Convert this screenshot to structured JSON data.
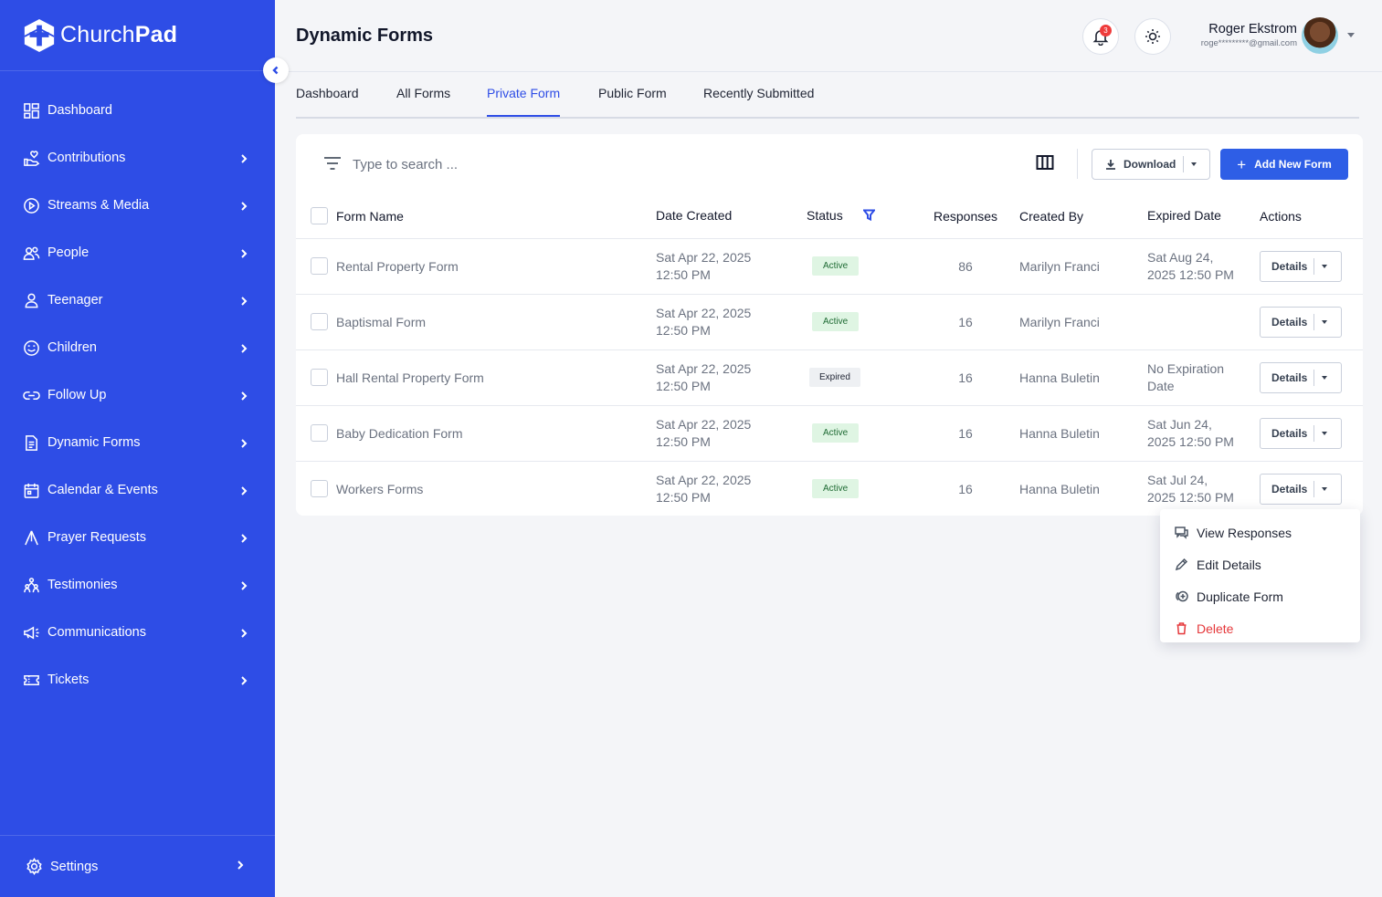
{
  "brand": {
    "name_part1": "Church",
    "name_part2": "Pad"
  },
  "sidebar": {
    "items": [
      {
        "label": "Dashboard",
        "icon": "dashboard-icon",
        "has_chevron": false
      },
      {
        "label": "Contributions",
        "icon": "hand-heart-icon",
        "has_chevron": true
      },
      {
        "label": "Streams & Media",
        "icon": "play-circle-icon",
        "has_chevron": true
      },
      {
        "label": "People",
        "icon": "people-icon",
        "has_chevron": true
      },
      {
        "label": "Teenager",
        "icon": "person-icon",
        "has_chevron": true
      },
      {
        "label": "Children",
        "icon": "smile-icon",
        "has_chevron": true
      },
      {
        "label": "Follow Up",
        "icon": "link-icon",
        "has_chevron": true
      },
      {
        "label": "Dynamic Forms",
        "icon": "document-icon",
        "has_chevron": true
      },
      {
        "label": "Calendar & Events",
        "icon": "calendar-icon",
        "has_chevron": true
      },
      {
        "label": "Prayer Requests",
        "icon": "praying-hands-icon",
        "has_chevron": true
      },
      {
        "label": "Testimonies",
        "icon": "group-icon",
        "has_chevron": true
      },
      {
        "label": "Communications",
        "icon": "megaphone-icon",
        "has_chevron": true
      },
      {
        "label": "Tickets",
        "icon": "ticket-icon",
        "has_chevron": true
      }
    ],
    "settings_label": "Settings"
  },
  "header": {
    "title": "Dynamic Forms",
    "notification_count": "3",
    "user_name": "Roger Ekstrom",
    "user_email": "roge*********@gmail.com"
  },
  "tabs": [
    {
      "label": "Dashboard",
      "active": false
    },
    {
      "label": "All Forms",
      "active": false
    },
    {
      "label": "Private Form",
      "active": true
    },
    {
      "label": "Public Form",
      "active": false
    },
    {
      "label": "Recently Submitted",
      "active": false
    }
  ],
  "toolbar": {
    "search_placeholder": "Type to search ...",
    "download_label": "Download",
    "add_label": "Add New Form"
  },
  "table": {
    "headers": {
      "name": "Form Name",
      "date": "Date Created",
      "status": "Status",
      "responses": "Responses",
      "created_by": "Created By",
      "expired": "Expired Date",
      "actions": "Actions"
    },
    "rows": [
      {
        "name": "Rental Property Form",
        "date_l1": "Sat Apr 22, 2025",
        "date_l2": "12:50 PM",
        "status": "Active",
        "responses": "86",
        "created_by": "Marilyn Franci",
        "exp_l1": "Sat Aug 24,",
        "exp_l2": "2025 12:50 PM",
        "action": "Details"
      },
      {
        "name": "Baptismal Form",
        "date_l1": "Sat Apr 22, 2025",
        "date_l2": "12:50 PM",
        "status": "Active",
        "responses": "16",
        "created_by": "Marilyn Franci",
        "exp_l1": "",
        "exp_l2": "",
        "action": "Details"
      },
      {
        "name": "Hall Rental Property Form",
        "date_l1": "Sat Apr 22, 2025",
        "date_l2": "12:50 PM",
        "status": "Expired",
        "responses": "16",
        "created_by": "Hanna  Buletin",
        "exp_l1": "No Expiration",
        "exp_l2": "Date",
        "action": "Details"
      },
      {
        "name": "Baby Dedication Form",
        "date_l1": "Sat Apr 22, 2025",
        "date_l2": "12:50 PM",
        "status": "Active",
        "responses": "16",
        "created_by": "Hanna  Buletin",
        "exp_l1": "Sat Jun 24,",
        "exp_l2": "2025 12:50 PM",
        "action": "Details"
      },
      {
        "name": "Workers Forms",
        "date_l1": "Sat Apr 22, 2025",
        "date_l2": "12:50 PM",
        "status": "Active",
        "responses": "16",
        "created_by": "Hanna  Buletin",
        "exp_l1": "Sat Jul 24,",
        "exp_l2": "2025 12:50 PM",
        "action": "Details"
      }
    ]
  },
  "menu": {
    "items": [
      {
        "label": "View Responses",
        "icon": "chat-icon"
      },
      {
        "label": "Edit Details",
        "icon": "pencil-icon"
      },
      {
        "label": "Duplicate Form",
        "icon": "duplicate-icon"
      },
      {
        "label": "Delete",
        "icon": "trash-icon"
      }
    ]
  },
  "colors": {
    "sidebar_bg": "#2e4de6",
    "accent": "#2e4de6",
    "active_bg": "#dff5e3",
    "danger": "#e5383b"
  }
}
